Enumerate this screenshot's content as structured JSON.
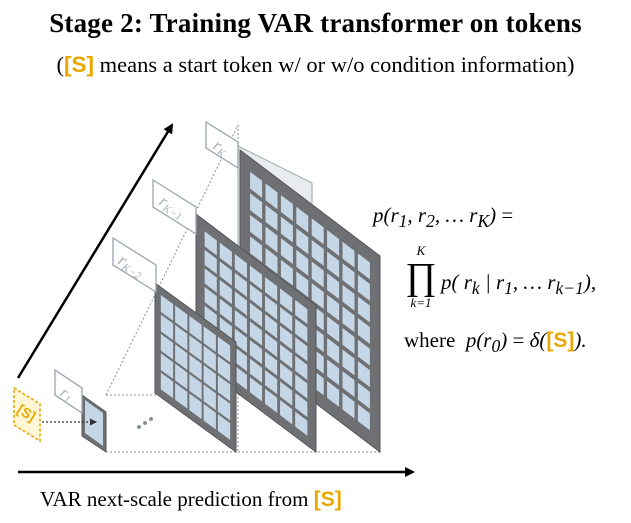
{
  "header": {
    "title": "Stage 2:  Training VAR transformer on tokens",
    "subtitle_token": "[S]",
    "subtitle_rest": " means a start token w/ or w/o condition information)",
    "subtitle_open": "("
  },
  "diagram": {
    "start_token": "[S]",
    "ellipsis": "...",
    "maps": [
      {
        "label": "r",
        "sub": "1"
      },
      {
        "label": "r",
        "sub": "K−2"
      },
      {
        "label": "r",
        "sub": "K−1"
      },
      {
        "label": "r",
        "sub": "K"
      }
    ]
  },
  "formula": {
    "line1": "p(r₁, r₂, … r_K) =",
    "prod_upper": "K",
    "prod_lower": "k=1",
    "prod_symbol": "∏",
    "line2": "p( r_k | r₁, … r_{k−1}),",
    "line3_prefix": "where  p(r₀) = δ(",
    "line3_token": "[S]",
    "line3_suffix": ")."
  },
  "footer": {
    "caption_text": "VAR next-scale prediction from ",
    "caption_token": "[S]"
  },
  "colors": {
    "accent_yellow": "#e8a800",
    "cell_fill": "#c5d6e6",
    "grid_bg": "#6e7073"
  }
}
